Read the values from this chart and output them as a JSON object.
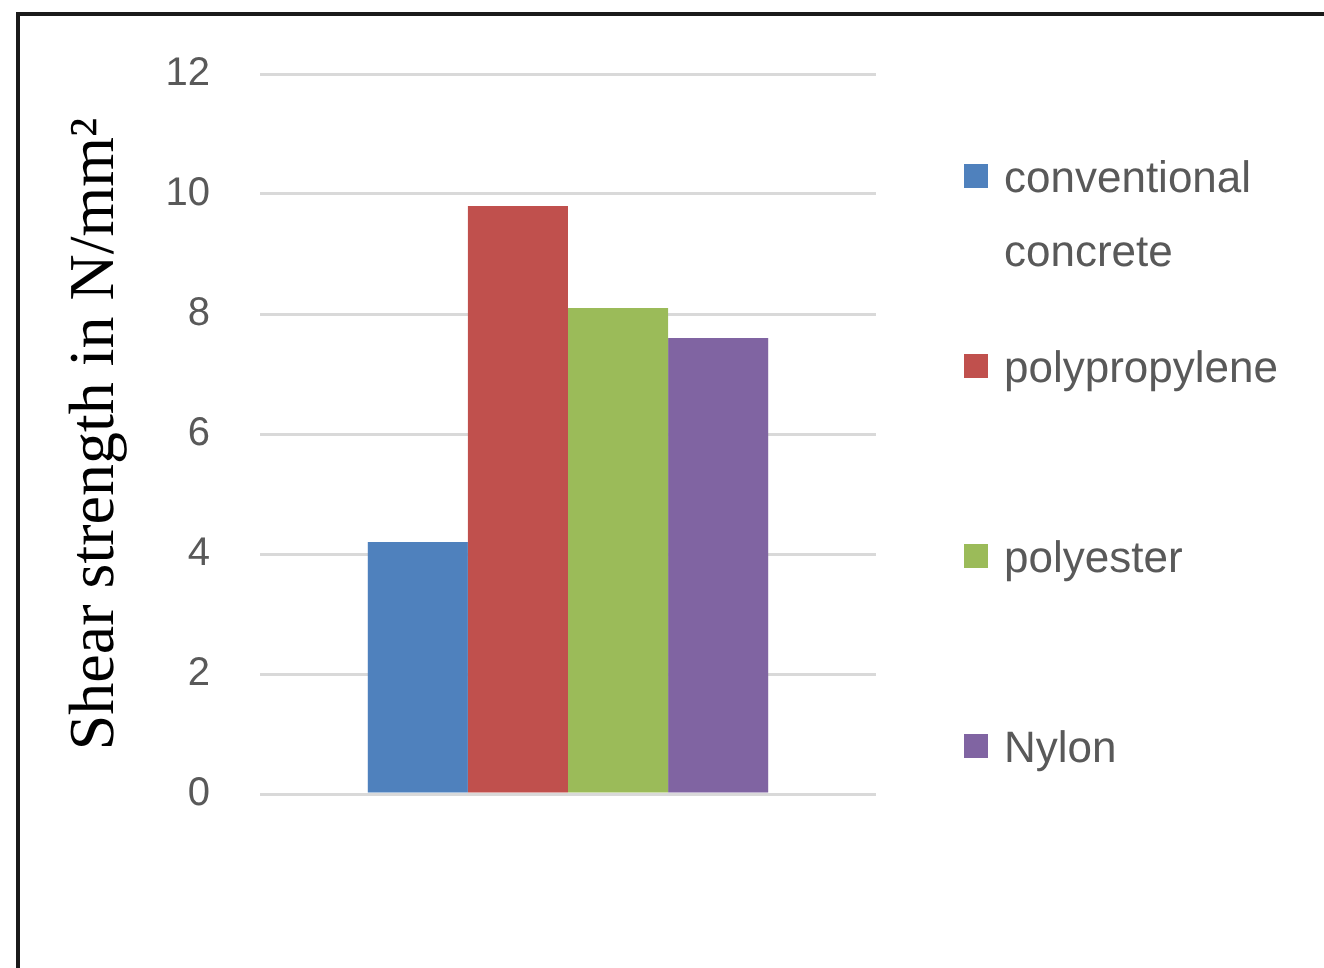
{
  "chart_data": {
    "type": "bar",
    "ylabel": "Shear strength in N/mm²",
    "categories": [
      null
    ],
    "series": [
      {
        "name": "conventional concrete",
        "color": "#4f81bd",
        "values": [
          4.2
        ]
      },
      {
        "name": "polypropylene",
        "color": "#c0504d",
        "values": [
          9.8
        ]
      },
      {
        "name": "polyester",
        "color": "#9bbb59",
        "values": [
          8.1
        ]
      },
      {
        "name": "Nylon",
        "color": "#8064a2",
        "values": [
          7.6
        ]
      }
    ],
    "ylim": [
      0,
      12
    ],
    "yticks": [
      0,
      2,
      4,
      6,
      8,
      10,
      12
    ],
    "grid": "y",
    "legend": "right"
  }
}
